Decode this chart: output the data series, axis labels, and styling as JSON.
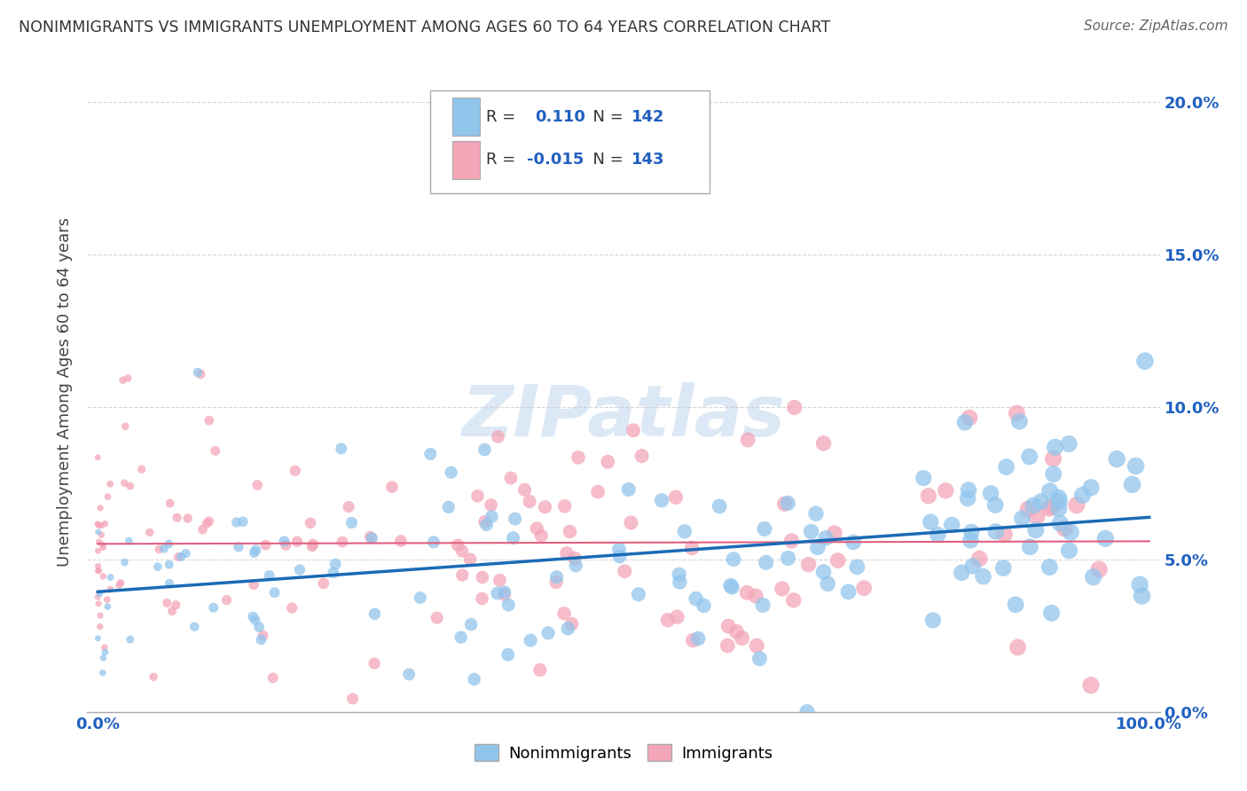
{
  "title": "NONIMMIGRANTS VS IMMIGRANTS UNEMPLOYMENT AMONG AGES 60 TO 64 YEARS CORRELATION CHART",
  "source": "Source: ZipAtlas.com",
  "ylabel": "Unemployment Among Ages 60 to 64 years",
  "ylim": [
    0.0,
    0.21
  ],
  "xlim": [
    -0.01,
    1.01
  ],
  "nonimmigrant_R": 0.11,
  "nonimmigrant_N": 142,
  "immigrant_R": -0.015,
  "immigrant_N": 143,
  "nonimmigrant_color": "#92C5EC",
  "immigrant_color": "#F4A6B8",
  "nonimmigrant_line_color": "#1A6BB5",
  "immigrant_line_color": "#E06080",
  "background_color": "#ffffff",
  "grid_color": "#cccccc",
  "title_color": "#333333",
  "watermark_color": "#dce8f5",
  "tick_color": "#2060C0",
  "seed": 42
}
